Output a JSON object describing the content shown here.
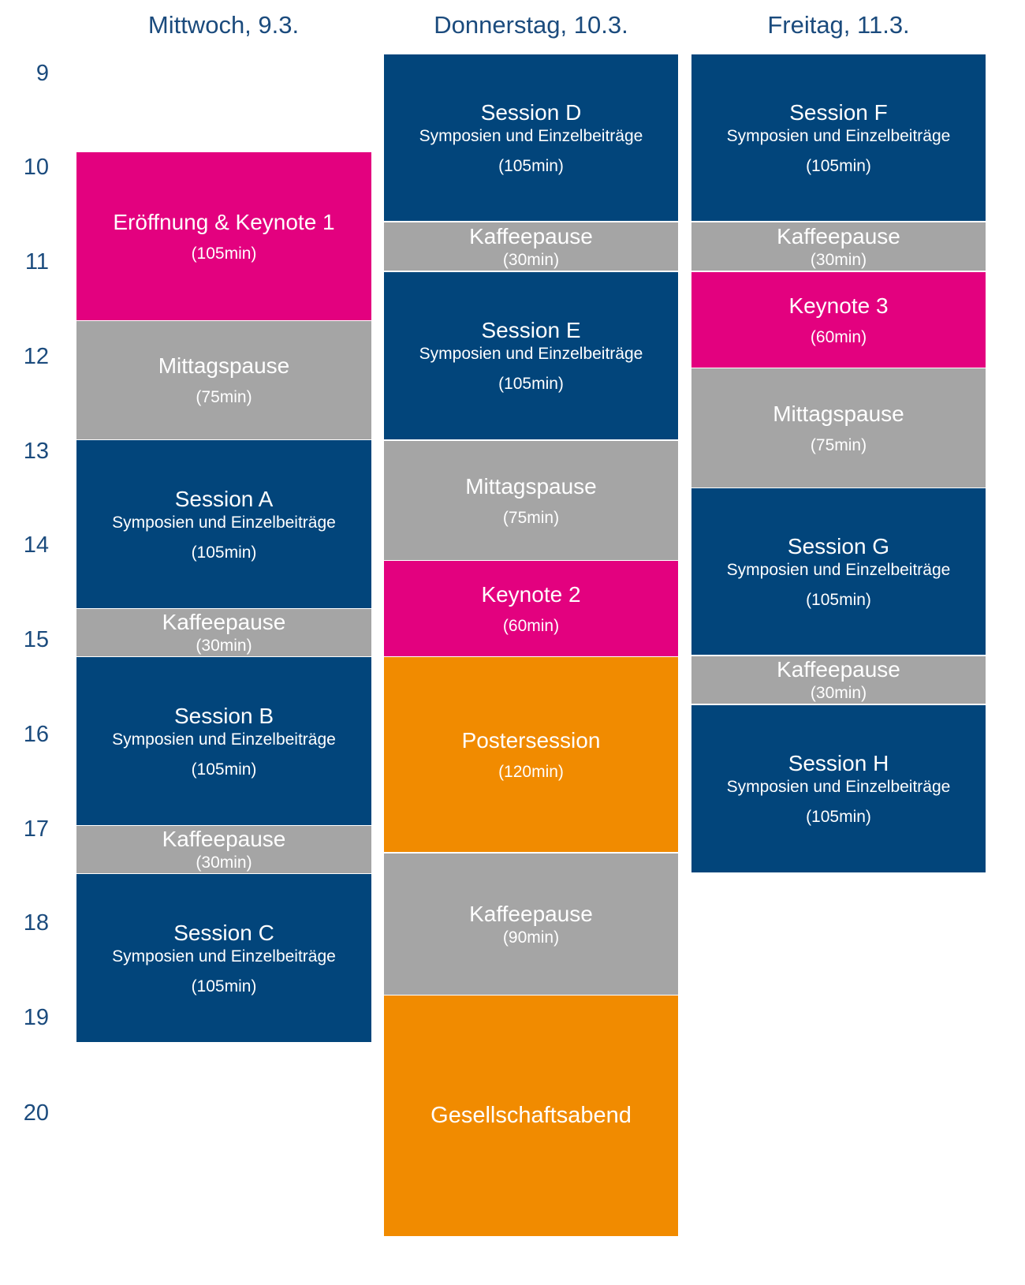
{
  "days": [
    {
      "label": "Mittwoch, 9.3.",
      "blocks": [
        {
          "kind": "keynote",
          "title": "Eröffnung & Keynote 1",
          "duration": "(105min)"
        },
        {
          "kind": "break",
          "title": "Mittagspause",
          "duration": "(75min)"
        },
        {
          "kind": "session",
          "title": "Session A",
          "subtitle": "Symposien und Einzelbeiträge",
          "duration": "(105min)"
        },
        {
          "kind": "break",
          "title": "Kaffeepause",
          "duration": "(30min)"
        },
        {
          "kind": "session",
          "title": "Session B",
          "subtitle": "Symposien und Einzelbeiträge",
          "duration": "(105min)"
        },
        {
          "kind": "break",
          "title": "Kaffeepause",
          "duration": "(30min)"
        },
        {
          "kind": "session",
          "title": "Session C",
          "subtitle": "Symposien und Einzelbeiträge",
          "duration": "(105min)"
        }
      ]
    },
    {
      "label": "Donnerstag, 10.3.",
      "blocks": [
        {
          "kind": "session",
          "title": "Session D",
          "subtitle": "Symposien und Einzelbeiträge",
          "duration": "(105min)"
        },
        {
          "kind": "break",
          "title": "Kaffeepause",
          "duration": "(30min)"
        },
        {
          "kind": "session",
          "title": "Session E",
          "subtitle": "Symposien und Einzelbeiträge",
          "duration": "(105min)"
        },
        {
          "kind": "break",
          "title": "Mittagspause",
          "duration": "(75min)"
        },
        {
          "kind": "keynote",
          "title": "Keynote 2",
          "duration": "(60min)"
        },
        {
          "kind": "poster",
          "title": "Postersession",
          "duration": "(120min)"
        },
        {
          "kind": "break",
          "title": "Kaffeepause",
          "duration": "(90min)"
        },
        {
          "kind": "social",
          "title": "Gesellschaftsabend"
        }
      ]
    },
    {
      "label": "Freitag, 11.3.",
      "blocks": [
        {
          "kind": "session",
          "title": "Session F",
          "subtitle": "Symposien und Einzelbeiträge",
          "duration": "(105min)"
        },
        {
          "kind": "break",
          "title": "Kaffeepause",
          "duration": "(30min)"
        },
        {
          "kind": "keynote",
          "title": "Keynote 3",
          "duration": "(60min)"
        },
        {
          "kind": "break",
          "title": "Mittagspause",
          "duration": "(75min)"
        },
        {
          "kind": "session",
          "title": "Session G",
          "subtitle": "Symposien und Einzelbeiträge",
          "duration": "(105min)"
        },
        {
          "kind": "break",
          "title": "Kaffeepause",
          "duration": "(30min)"
        },
        {
          "kind": "session",
          "title": "Session H",
          "subtitle": "Symposien und Einzelbeiträge",
          "duration": "(105min)"
        }
      ]
    }
  ],
  "hours": [
    "9",
    "10",
    "11",
    "12",
    "13",
    "14",
    "15",
    "16",
    "17",
    "18",
    "19",
    "20"
  ],
  "colors": {
    "session": "#02457b",
    "break": "#a5a5a5",
    "keynote": "#e3017f",
    "poster": "#f18b00",
    "text_accent": "#1b4b7d"
  }
}
